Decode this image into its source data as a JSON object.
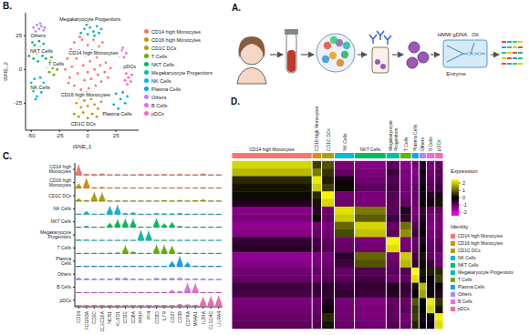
{
  "chart_data": [
    {
      "type": "scatter",
      "title": "B.",
      "x_label": "tSNE_1",
      "y_label": "tSNE_2",
      "xlim": [
        -55,
        45
      ],
      "xticks": [
        -50,
        -25,
        0,
        25
      ],
      "ylim": [
        -45,
        42
      ],
      "yticks": [
        -25,
        0,
        25
      ],
      "grid": false,
      "legend": "right",
      "series": [
        {
          "name": "CD14 high Monocytes",
          "color": "#F8766D",
          "x": [
            -20,
            -18,
            -16,
            -15,
            -14,
            -12,
            -12,
            -10,
            -9,
            -8,
            -6,
            -5,
            -4,
            -3,
            -2,
            0,
            0,
            1,
            2,
            3,
            4,
            5,
            6,
            7,
            8,
            9,
            10,
            11,
            12,
            14,
            15,
            16,
            18,
            19,
            20,
            -17,
            -7,
            13,
            -1,
            6
          ],
          "values": [
            0,
            8,
            -6,
            15,
            2,
            -12,
            20,
            8,
            -3,
            14,
            -15,
            22,
            3,
            -8,
            10,
            18,
            -2,
            -14,
            6,
            -7,
            14,
            22,
            0,
            -12,
            9,
            -4,
            17,
            3,
            -9,
            11,
            -2,
            5,
            -6,
            12,
            1,
            -10,
            24,
            20,
            -17,
            -18
          ]
        },
        {
          "name": "CD16 high Monocytes",
          "color": "#DB8E00",
          "x": [
            -10,
            -6,
            -3,
            0,
            3,
            6,
            9,
            12,
            -8
          ],
          "values": [
            -25,
            -28,
            -23,
            -27,
            -22,
            -26,
            -29,
            -24,
            -21
          ]
        },
        {
          "name": "CD1C DCs",
          "color": "#AEA200",
          "x": [
            -12,
            -8,
            -4,
            0,
            4,
            8
          ],
          "values": [
            -33,
            -35,
            -32,
            -36,
            -33,
            -35
          ]
        },
        {
          "name": "T Cells",
          "color": "#64B200",
          "x": [
            -36,
            -34,
            -33,
            -31,
            -30,
            -29,
            -27,
            -32
          ],
          "values": [
            2,
            -2,
            6,
            1,
            -4,
            5,
            0,
            9
          ]
        },
        {
          "name": "NKT Cells",
          "color": "#00BD5C",
          "x": [
            -52,
            -50,
            -48,
            -47,
            -45,
            -44,
            -42,
            -40,
            -39,
            -37,
            -49,
            -43
          ],
          "values": [
            10,
            14,
            8,
            18,
            12,
            6,
            16,
            10,
            19,
            8,
            20,
            21
          ]
        },
        {
          "name": "Megakaryocyte Progenitors",
          "color": "#00C1A7",
          "x": [
            -6,
            -3,
            0,
            2,
            5,
            8,
            10,
            12,
            -1,
            6
          ],
          "values": [
            27,
            30,
            26,
            31,
            28,
            32,
            27,
            30,
            33,
            25
          ]
        },
        {
          "name": "NK Cells",
          "color": "#00BADE",
          "x": [
            -50,
            -48,
            -47,
            -45,
            -44,
            -42,
            -41,
            -39,
            -37,
            -46
          ],
          "values": [
            -10,
            -16,
            -7,
            -20,
            -12,
            -6,
            -17,
            -10,
            -14,
            -22
          ]
        },
        {
          "name": "Plasma Cells",
          "color": "#00A6FF",
          "x": [
            20,
            23,
            25,
            27,
            29,
            31,
            33,
            35
          ],
          "values": [
            -20,
            -26,
            -18,
            -29,
            -22,
            -17,
            -25,
            -20
          ]
        },
        {
          "name": "Others",
          "color": "#B385FF",
          "x": [
            -48,
            -45,
            -43,
            -41,
            -39,
            -46,
            -42,
            -38
          ],
          "values": [
            31,
            33,
            30,
            32,
            29,
            28,
            34,
            31
          ]
        },
        {
          "name": "B Cells",
          "color": "#EF67EB",
          "x": [
            28,
            30,
            32,
            34,
            31
          ],
          "values": [
            10,
            14,
            9,
            12,
            16
          ]
        },
        {
          "name": "pDCs",
          "color": "#FF63B6",
          "x": [
            33,
            35,
            36,
            38,
            39,
            34
          ],
          "values": [
            -8,
            -11,
            -6,
            -9,
            -4,
            -3
          ]
        }
      ],
      "annotations": [
        "Megakaryocyte Progenitors",
        "Others",
        "NKT Cells",
        "T Cells",
        "CD14 high Monocytes",
        "NK Cells",
        "pDCs",
        "Plasma Cells",
        "CD16 high Monocytes",
        "CD1C DCs"
      ]
    },
    {
      "type": "violin",
      "title": "C.",
      "grid": false,
      "categories": [
        "CD14",
        "FCGR3A",
        "CD1C",
        "CLEC10A",
        "NCR1",
        "KLRD1",
        "CD3E",
        "CD8A",
        "PPBP",
        "PF4",
        "CD3D",
        "IL7R",
        "CD27",
        "CD38",
        "CD79A",
        "MS4A1",
        "IL3RA",
        "CLEC4C",
        "LILRA4"
      ],
      "rows": [
        "CD14 high Monocytes",
        "CD16 high Monocytes",
        "CD1C DCs",
        "NK Cells",
        "NKT Cells",
        "Megakaryocyte Progenitors",
        "T Cells",
        "Plasma Cells",
        "Others",
        "B Cells",
        "pDCs"
      ],
      "colors": [
        "#F8766D",
        "#DB8E00",
        "#AEA200",
        "#00BADE",
        "#00BD5C",
        "#00C1A7",
        "#64B200",
        "#00A6FF",
        "#B385FF",
        "#EF67EB",
        "#FF63B6"
      ],
      "ylim": [
        0,
        3
      ],
      "values": [
        [
          2.8,
          0.3,
          0.2,
          0.4,
          0,
          0.1,
          0,
          0,
          0.2,
          0.1,
          0,
          0.2,
          0,
          0.3,
          0,
          0,
          0.4,
          0,
          0
        ],
        [
          1.2,
          2.7,
          0.2,
          0.3,
          0,
          0.2,
          0,
          0,
          0.1,
          0,
          0,
          0,
          0,
          0.2,
          0,
          0,
          0.2,
          0,
          0
        ],
        [
          0.8,
          0.3,
          2.5,
          2.4,
          0,
          0,
          0,
          0,
          0,
          0,
          0,
          0.2,
          0,
          0.3,
          0,
          0.2,
          0.5,
          0,
          0
        ],
        [
          0,
          0.9,
          0,
          0,
          2.3,
          2.6,
          0.3,
          0.6,
          0,
          0,
          0.3,
          0.2,
          0.2,
          0.3,
          0,
          0,
          0,
          0,
          0
        ],
        [
          0,
          0.4,
          0,
          0,
          1.2,
          2.2,
          2.4,
          2.3,
          0,
          0,
          2.5,
          1.1,
          1.4,
          0.4,
          0,
          0,
          0,
          0,
          0
        ],
        [
          0.2,
          0.1,
          0,
          0,
          0,
          0,
          0,
          0,
          2.9,
          2.7,
          0,
          0,
          0,
          0,
          0,
          0,
          0,
          0,
          0
        ],
        [
          0,
          0,
          0,
          0,
          0,
          0.3,
          2.2,
          0.6,
          0,
          0,
          2.4,
          2.3,
          2.1,
          0.3,
          0,
          0,
          0,
          0,
          0
        ],
        [
          0,
          0,
          0,
          0,
          0,
          0,
          0,
          0,
          0,
          0,
          0,
          0,
          1.5,
          2.9,
          1.2,
          0.2,
          0,
          0,
          0
        ],
        [
          0.5,
          0.4,
          0.3,
          0.3,
          0.2,
          0.6,
          0.5,
          0.3,
          0.2,
          0.1,
          0.5,
          0.4,
          0.5,
          0.6,
          0.3,
          0.3,
          0.3,
          0.1,
          0.1
        ],
        [
          0,
          0,
          0,
          0,
          0,
          0,
          0,
          0,
          0,
          0,
          0,
          0,
          0.8,
          0.5,
          2.7,
          2.6,
          0,
          0,
          0
        ],
        [
          0,
          0,
          0,
          0,
          0,
          0,
          0,
          0,
          0,
          0,
          0,
          0,
          0,
          0.5,
          0.4,
          0,
          2.4,
          2.6,
          2.8
        ]
      ]
    },
    {
      "type": "heatmap",
      "title": "D.",
      "tick_labels": false,
      "legend": "right",
      "legend_title": "Identity",
      "categories": [
        "CD14 high Monocytes",
        "CD16 high Monocytes",
        "CD1C DCs",
        "NK Cells",
        "NKT Cells",
        "Megakaryocyte Progenitors",
        "T Cells",
        "Plasma Cells",
        "Others",
        "B Cells",
        "pDCs"
      ],
      "colors": [
        "#F8766D",
        "#DB8E00",
        "#AEA200",
        "#00BADE",
        "#00BD5C",
        "#00C1A7",
        "#64B200",
        "#00A6FF",
        "#B385FF",
        "#EF67EB",
        "#FF63B6"
      ],
      "cell_counts": [
        380,
        45,
        60,
        95,
        150,
        65,
        55,
        35,
        35,
        40,
        40
      ],
      "colorbar": {
        "title": "Expression",
        "range": [
          -2.5,
          2.5
        ],
        "ticks": [
          -2,
          -1,
          0,
          1,
          2
        ]
      },
      "values": [
        [
          2.1,
          0.6,
          0.8,
          -1.2,
          -1.3,
          -0.9,
          -1.3,
          -1.1,
          -0.4,
          -1.2,
          -1.0
        ],
        [
          1.8,
          1.2,
          0.5,
          -1.0,
          -1.2,
          -0.6,
          -1.2,
          -1.3,
          -0.2,
          -1.1,
          -0.9
        ],
        [
          0.4,
          2.3,
          0.3,
          -0.2,
          -1.1,
          -0.8,
          -1.2,
          -1.2,
          -0.3,
          -1.0,
          -0.8
        ],
        [
          0.2,
          2.0,
          0.6,
          0.1,
          -0.9,
          -0.7,
          -1.1,
          -1.0,
          -0.1,
          -0.9,
          -0.6
        ],
        [
          0.1,
          0.4,
          2.4,
          -1.1,
          -1.2,
          -0.8,
          -1.1,
          -1.0,
          -0.2,
          -0.4,
          -0.3
        ],
        [
          -0.3,
          0.2,
          2.1,
          -1.0,
          -1.2,
          -0.9,
          -1.0,
          -1.1,
          0.1,
          -0.2,
          0.2
        ],
        [
          -1.3,
          -0.4,
          -1.1,
          2.2,
          1.2,
          -0.9,
          -0.3,
          -1.2,
          -0.5,
          -1.1,
          -1.0
        ],
        [
          -1.2,
          0.1,
          -1.0,
          2.0,
          0.9,
          -0.6,
          -0.5,
          -1.1,
          -0.4,
          -1.2,
          -1.1
        ],
        [
          -1.4,
          -1.1,
          -1.2,
          1.0,
          2.1,
          -1.0,
          1.1,
          -0.8,
          -0.2,
          -1.3,
          -1.2
        ],
        [
          -1.3,
          -1.0,
          -1.1,
          0.7,
          1.9,
          -0.9,
          1.4,
          -0.6,
          -0.1,
          -1.2,
          -1.1
        ],
        [
          -0.5,
          -0.7,
          -0.9,
          -1.1,
          -1.2,
          2.4,
          -1.2,
          -1.0,
          -0.3,
          -1.1,
          -1.0
        ],
        [
          -0.4,
          -0.6,
          -0.8,
          -1.0,
          -1.1,
          2.2,
          -1.1,
          -0.9,
          0.0,
          -1.0,
          -0.9
        ],
        [
          -1.4,
          -1.2,
          -1.2,
          -0.4,
          1.0,
          -1.1,
          2.0,
          -0.7,
          0.2,
          -1.0,
          -1.2
        ],
        [
          -1.3,
          -1.2,
          -1.1,
          -0.6,
          0.8,
          -1.0,
          1.8,
          -0.5,
          0.1,
          -0.6,
          -1.1
        ],
        [
          -1.1,
          -1.0,
          -0.9,
          -1.0,
          -0.8,
          -0.9,
          -0.8,
          2.5,
          0.2,
          0.3,
          0.4
        ],
        [
          -1.0,
          -1.1,
          -0.8,
          -0.9,
          -0.7,
          -1.0,
          -0.9,
          2.2,
          0.1,
          0.0,
          0.6
        ],
        [
          -0.6,
          -0.5,
          -0.4,
          -0.6,
          -0.5,
          -0.3,
          -0.5,
          0.2,
          1.8,
          -0.2,
          -0.1
        ],
        [
          -0.7,
          -0.6,
          -0.5,
          -0.5,
          -0.6,
          -0.4,
          -0.6,
          0.0,
          1.6,
          0.1,
          -0.3
        ],
        [
          -1.2,
          -1.1,
          -0.3,
          -1.2,
          -1.3,
          -1.0,
          -1.0,
          0.8,
          -0.1,
          2.3,
          0.5
        ],
        [
          -1.1,
          -1.0,
          -0.1,
          -1.1,
          -1.2,
          -0.9,
          -0.9,
          0.5,
          0.0,
          2.1,
          0.2
        ],
        [
          -1.0,
          -0.9,
          0.4,
          -1.1,
          -1.2,
          -0.9,
          -1.1,
          0.6,
          -0.2,
          0.1,
          2.4
        ],
        [
          -0.9,
          -0.8,
          0.2,
          -1.0,
          -1.1,
          -0.8,
          -1.0,
          0.3,
          -0.1,
          -0.2,
          2.2
        ]
      ]
    }
  ],
  "diagram": {
    "panel": "A.",
    "chip_labels": [
      "HMW gDNA",
      "Oil",
      "Enzyme"
    ]
  }
}
